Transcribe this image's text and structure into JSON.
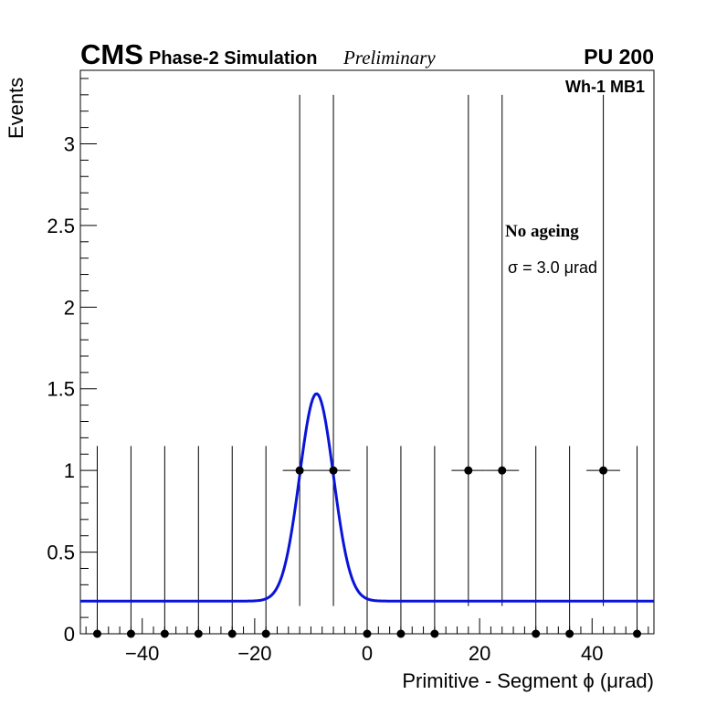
{
  "chart_data": {
    "type": "scatter",
    "title": "",
    "header": {
      "experiment": "CMS",
      "subtitle": "Phase-2 Simulation",
      "status": "Preliminary",
      "pileup": "PU 200",
      "region": "Wh-1 MB1"
    },
    "xlabel": "Primitive - Segment ϕ (μrad)",
    "ylabel": "Events",
    "xlim": [
      -51,
      51
    ],
    "ylim": [
      0,
      3.45
    ],
    "x_ticks": [
      -40,
      -20,
      0,
      20,
      40
    ],
    "x_tick_labels": [
      "−40",
      "−20",
      "0",
      "20",
      "40"
    ],
    "y_ticks": [
      0,
      0.5,
      1,
      1.5,
      2,
      2.5,
      3
    ],
    "y_tick_labels": [
      "0",
      "0.5",
      "1",
      "1.5",
      "2",
      "2.5",
      "3"
    ],
    "bin_width": 6,
    "series": [
      {
        "name": "Data points",
        "color": "#000000",
        "points": [
          {
            "x": -48,
            "y": 0,
            "err_low": 0,
            "err_high": 1.15
          },
          {
            "x": -42,
            "y": 0,
            "err_low": 0,
            "err_high": 1.15
          },
          {
            "x": -36,
            "y": 0,
            "err_low": 0,
            "err_high": 1.15
          },
          {
            "x": -30,
            "y": 0,
            "err_low": 0,
            "err_high": 1.15
          },
          {
            "x": -24,
            "y": 0,
            "err_low": 0,
            "err_high": 1.15
          },
          {
            "x": -18,
            "y": 0,
            "err_low": 0,
            "err_high": 1.15
          },
          {
            "x": -12,
            "y": 1,
            "err_low": 0.83,
            "err_high": 2.3
          },
          {
            "x": -6,
            "y": 1,
            "err_low": 0.83,
            "err_high": 2.3
          },
          {
            "x": 0,
            "y": 0,
            "err_low": 0,
            "err_high": 1.15
          },
          {
            "x": 6,
            "y": 0,
            "err_low": 0,
            "err_high": 1.15
          },
          {
            "x": 12,
            "y": 0,
            "err_low": 0,
            "err_high": 1.15
          },
          {
            "x": 18,
            "y": 1,
            "err_low": 0.83,
            "err_high": 2.3
          },
          {
            "x": 24,
            "y": 1,
            "err_low": 0.83,
            "err_high": 2.3
          },
          {
            "x": 30,
            "y": 0,
            "err_low": 0,
            "err_high": 1.15
          },
          {
            "x": 36,
            "y": 0,
            "err_low": 0,
            "err_high": 1.15
          },
          {
            "x": 42,
            "y": 1,
            "err_low": 0.83,
            "err_high": 2.3
          },
          {
            "x": 48,
            "y": 0,
            "err_low": 0,
            "err_high": 1.15
          }
        ]
      },
      {
        "name": "Fit",
        "type": "line",
        "color": "#0a14d8",
        "model": "gaussian+constant",
        "mean": -9,
        "sigma": 3.0,
        "peak": 1.27,
        "baseline_left": 0.2,
        "baseline_right": 0.2
      }
    ],
    "annotations": {
      "ageing": "No ageing",
      "sigma_text": "σ = 3.0  μrad"
    }
  }
}
